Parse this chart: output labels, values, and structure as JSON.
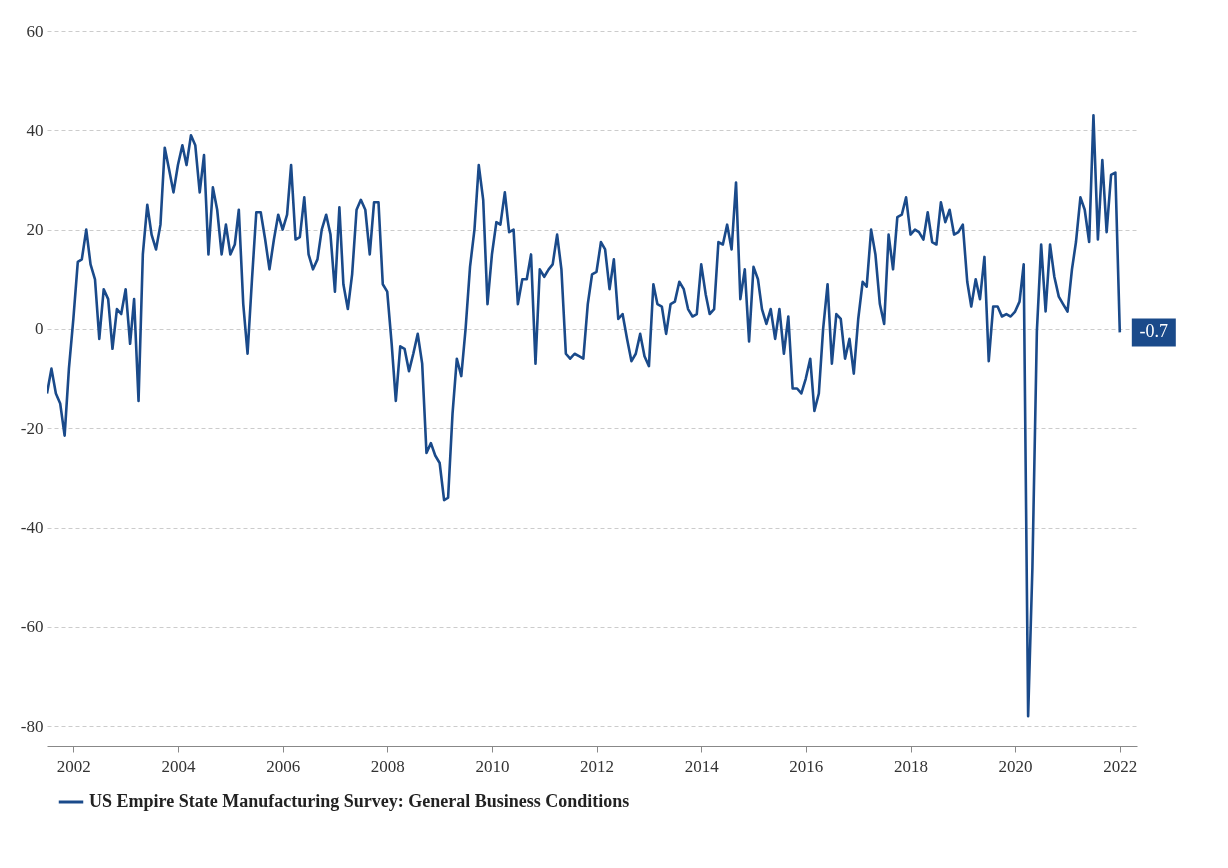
{
  "chart_data": {
    "type": "line",
    "x": [
      "2001-07",
      "2001-08",
      "2001-09",
      "2001-10",
      "2001-11",
      "2001-12",
      "2002-01",
      "2002-02",
      "2002-03",
      "2002-04",
      "2002-05",
      "2002-06",
      "2002-07",
      "2002-08",
      "2002-09",
      "2002-10",
      "2002-11",
      "2002-12",
      "2003-01",
      "2003-02",
      "2003-03",
      "2003-04",
      "2003-05",
      "2003-06",
      "2003-07",
      "2003-08",
      "2003-09",
      "2003-10",
      "2003-11",
      "2003-12",
      "2004-01",
      "2004-02",
      "2004-03",
      "2004-04",
      "2004-05",
      "2004-06",
      "2004-07",
      "2004-08",
      "2004-09",
      "2004-10",
      "2004-11",
      "2004-12",
      "2005-01",
      "2005-02",
      "2005-03",
      "2005-04",
      "2005-05",
      "2005-06",
      "2005-07",
      "2005-08",
      "2005-09",
      "2005-10",
      "2005-11",
      "2005-12",
      "2006-01",
      "2006-02",
      "2006-03",
      "2006-04",
      "2006-05",
      "2006-06",
      "2006-07",
      "2006-08",
      "2006-09",
      "2006-10",
      "2006-11",
      "2006-12",
      "2007-01",
      "2007-02",
      "2007-03",
      "2007-04",
      "2007-05",
      "2007-06",
      "2007-07",
      "2007-08",
      "2007-09",
      "2007-10",
      "2007-11",
      "2007-12",
      "2008-01",
      "2008-02",
      "2008-03",
      "2008-04",
      "2008-05",
      "2008-06",
      "2008-07",
      "2008-08",
      "2008-09",
      "2008-10",
      "2008-11",
      "2008-12",
      "2009-01",
      "2009-02",
      "2009-03",
      "2009-04",
      "2009-05",
      "2009-06",
      "2009-07",
      "2009-08",
      "2009-09",
      "2009-10",
      "2009-11",
      "2009-12",
      "2010-01",
      "2010-02",
      "2010-03",
      "2010-04",
      "2010-05",
      "2010-06",
      "2010-07",
      "2010-08",
      "2010-09",
      "2010-10",
      "2010-11",
      "2010-12",
      "2011-01",
      "2011-02",
      "2011-03",
      "2011-04",
      "2011-05",
      "2011-06",
      "2011-07",
      "2011-08",
      "2011-09",
      "2011-10",
      "2011-11",
      "2011-12",
      "2012-01",
      "2012-02",
      "2012-03",
      "2012-04",
      "2012-05",
      "2012-06",
      "2012-07",
      "2012-08",
      "2012-09",
      "2012-10",
      "2012-11",
      "2012-12",
      "2013-01",
      "2013-02",
      "2013-03",
      "2013-04",
      "2013-05",
      "2013-06",
      "2013-07",
      "2013-08",
      "2013-09",
      "2013-10",
      "2013-11",
      "2013-12",
      "2014-01",
      "2014-02",
      "2014-03",
      "2014-04",
      "2014-05",
      "2014-06",
      "2014-07",
      "2014-08",
      "2014-09",
      "2014-10",
      "2014-11",
      "2014-12",
      "2015-01",
      "2015-02",
      "2015-03",
      "2015-04",
      "2015-05",
      "2015-06",
      "2015-07",
      "2015-08",
      "2015-09",
      "2015-10",
      "2015-11",
      "2015-12",
      "2016-01",
      "2016-02",
      "2016-03",
      "2016-04",
      "2016-05",
      "2016-06",
      "2016-07",
      "2016-08",
      "2016-09",
      "2016-10",
      "2016-11",
      "2016-12",
      "2017-01",
      "2017-02",
      "2017-03",
      "2017-04",
      "2017-05",
      "2017-06",
      "2017-07",
      "2017-08",
      "2017-09",
      "2017-10",
      "2017-11",
      "2017-12",
      "2018-01",
      "2018-02",
      "2018-03",
      "2018-04",
      "2018-05",
      "2018-06",
      "2018-07",
      "2018-08",
      "2018-09",
      "2018-10",
      "2018-11",
      "2018-12",
      "2019-01",
      "2019-02",
      "2019-03",
      "2019-04",
      "2019-05",
      "2019-06",
      "2019-07",
      "2019-08",
      "2019-09",
      "2019-10",
      "2019-11",
      "2019-12",
      "2020-01",
      "2020-02",
      "2020-03",
      "2020-04",
      "2020-05",
      "2020-06",
      "2020-07",
      "2020-08",
      "2020-09",
      "2020-10",
      "2020-11",
      "2020-12",
      "2021-01",
      "2021-02",
      "2021-03",
      "2021-04",
      "2021-05",
      "2021-06",
      "2021-07",
      "2021-08",
      "2021-09",
      "2021-10",
      "2021-11",
      "2021-12",
      "2022-01"
    ],
    "series": [
      {
        "name": "US Empire State Manufacturing Survey: General Business Conditions",
        "color": "#1a4a8a",
        "values": [
          -13,
          -8,
          -13,
          -15,
          -21.5,
          -8,
          2,
          13.5,
          14,
          20,
          13,
          10,
          -2,
          8,
          6,
          -4,
          4,
          3,
          8,
          -3,
          6,
          -14.5,
          15,
          25,
          19,
          16,
          21,
          36.5,
          32,
          27.5,
          33,
          37,
          33,
          39,
          37,
          27.5,
          35,
          15,
          28.5,
          24,
          15,
          21,
          15,
          17,
          24,
          5,
          -5,
          10,
          23.5,
          23.5,
          18,
          12,
          18,
          23,
          20,
          23,
          33,
          18,
          18.5,
          26.5,
          15,
          12,
          14,
          20,
          23,
          19,
          7.5,
          24.5,
          9,
          4,
          11,
          24,
          26,
          24,
          15,
          25.5,
          25.5,
          9,
          7.5,
          -3,
          -14.5,
          -3.5,
          -4,
          -8.5,
          -5,
          -1,
          -7,
          -25,
          -23,
          -25.5,
          -27,
          -34.5,
          -34,
          -17,
          -6,
          -9.5,
          0,
          12.5,
          20,
          33,
          26,
          5,
          15,
          21.5,
          21,
          27.5,
          19.5,
          20,
          5,
          10,
          10,
          15,
          -7,
          12,
          10.5,
          12,
          13,
          19,
          12,
          -5,
          -6,
          -5,
          -5.5,
          -6,
          5,
          11,
          11.5,
          17.5,
          16,
          8,
          14,
          2,
          3,
          -2,
          -6.5,
          -5,
          -1,
          -5.5,
          -7.5,
          9,
          5,
          4.5,
          -1,
          5,
          5.5,
          9.5,
          8,
          4,
          2.5,
          3,
          13,
          7,
          3,
          4,
          17.5,
          17,
          21,
          16,
          29.5,
          6,
          12,
          -2.5,
          12.5,
          10,
          4,
          1,
          4,
          -2,
          4,
          -5,
          2.5,
          -12,
          -12,
          -13,
          -10,
          -6,
          -16.5,
          -13,
          0,
          9,
          -7,
          3,
          2,
          -6,
          -2,
          -9,
          2,
          9.5,
          8.5,
          20,
          15,
          5,
          1,
          19,
          12,
          22.5,
          23,
          26.5,
          19,
          20,
          19.5,
          18,
          23.5,
          17.5,
          17,
          25.5,
          21.5,
          24,
          19,
          19.5,
          21,
          9.5,
          4.5,
          10,
          6,
          14.5,
          -6.5,
          4.5,
          4.5,
          2.5,
          3,
          2.5,
          3.5,
          5.5,
          13,
          -78,
          -48,
          -0.5,
          17,
          3.5,
          17,
          10.5,
          6.5,
          5,
          3.5,
          12,
          17.5,
          26.5,
          24,
          17.5,
          43,
          18,
          34,
          19.5,
          31,
          31.5,
          -0.7
        ]
      }
    ],
    "xlim": [
      "2001-07",
      "2022-05"
    ],
    "xticks": [
      {
        "value": "2002",
        "label": "2002"
      },
      {
        "value": "2004",
        "label": "2004"
      },
      {
        "value": "2006",
        "label": "2006"
      },
      {
        "value": "2008",
        "label": "2008"
      },
      {
        "value": "2010",
        "label": "2010"
      },
      {
        "value": "2012",
        "label": "2012"
      },
      {
        "value": "2014",
        "label": "2014"
      },
      {
        "value": "2016",
        "label": "2016"
      },
      {
        "value": "2018",
        "label": "2018"
      },
      {
        "value": "2020",
        "label": "2020"
      },
      {
        "value": "2022",
        "label": "2022"
      }
    ],
    "ylim": [
      -84,
      60
    ],
    "yticks": [
      -80,
      -60,
      -40,
      -20,
      0,
      20,
      40,
      60
    ],
    "grid": "y",
    "legend": "bottom",
    "annotations": [
      {
        "text": "-0.7",
        "x": "2022-01",
        "y": -0.7
      }
    ]
  }
}
